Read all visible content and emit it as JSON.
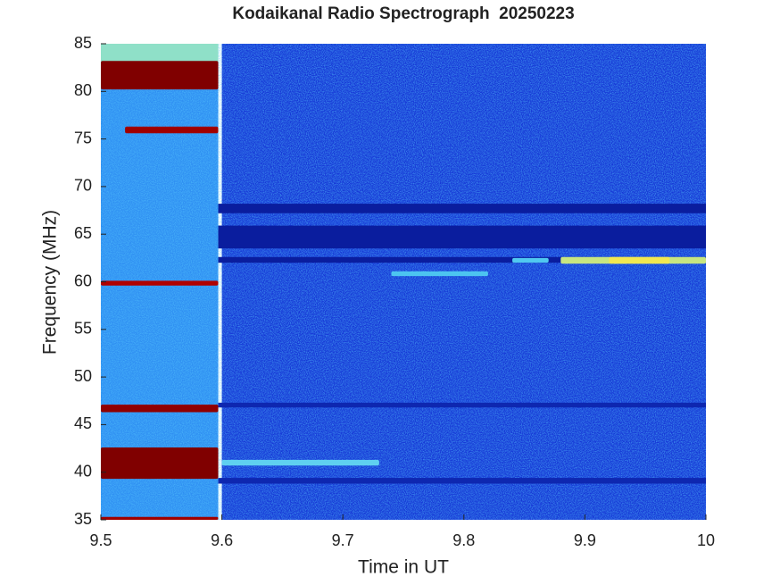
{
  "chart_data": {
    "type": "heatmap",
    "title": "Kodaikanal Radio Spectrograph  20250223",
    "xlabel": "Time in UT",
    "ylabel": "Frequency (MHz)",
    "xlim": [
      9.5,
      10
    ],
    "ylim": [
      35,
      85
    ],
    "xticks": [
      9.5,
      9.6,
      9.7,
      9.8,
      9.9,
      10
    ],
    "yticks": [
      35,
      40,
      45,
      50,
      55,
      60,
      65,
      70,
      75,
      80,
      85
    ],
    "regions": [
      {
        "x": [
          9.6,
          10
        ],
        "y": [
          35,
          85
        ],
        "color": "#1638d6"
      },
      {
        "x": [
          9.5,
          9.597
        ],
        "y": [
          35,
          85
        ],
        "color": "#2f8ff2"
      },
      {
        "x": [
          9.5,
          9.597
        ],
        "y": [
          83,
          85
        ],
        "color": "#8fe0c8"
      },
      {
        "x": [
          9.597,
          10
        ],
        "y": [
          67.2,
          68.2
        ],
        "color": "#0a1d9e"
      },
      {
        "x": [
          9.597,
          10
        ],
        "y": [
          63.5,
          65.9
        ],
        "color": "#0a1d9e"
      },
      {
        "x": [
          9.597,
          10
        ],
        "y": [
          62,
          62.6
        ],
        "color": "#0a1d9e"
      },
      {
        "x": [
          9.597,
          10
        ],
        "y": [
          46.8,
          47.3
        ],
        "color": "#0e27b0"
      },
      {
        "x": [
          9.597,
          10
        ],
        "y": [
          38.8,
          39.4
        ],
        "color": "#0e27b0"
      },
      {
        "x": [
          9.5,
          9.597
        ],
        "y": [
          80.2,
          83.2
        ],
        "color": "#800000"
      },
      {
        "x": [
          9.5,
          9.597
        ],
        "y": [
          39.3,
          42.6
        ],
        "color": "#800000"
      },
      {
        "x": [
          9.52,
          9.597
        ],
        "y": [
          75.6,
          76.3
        ],
        "color": "#a00000"
      },
      {
        "x": [
          9.5,
          9.597
        ],
        "y": [
          59.6,
          60.1
        ],
        "color": "#b00000"
      },
      {
        "x": [
          9.5,
          9.597
        ],
        "y": [
          46.3,
          47.1
        ],
        "color": "#900000"
      },
      {
        "x": [
          9.5,
          9.597
        ],
        "y": [
          35,
          35.3
        ],
        "color": "#a00000"
      },
      {
        "x": [
          9.6,
          9.73
        ],
        "y": [
          40.7,
          41.3
        ],
        "color": "#5fd0f0"
      },
      {
        "x": [
          9.74,
          9.82
        ],
        "y": [
          60.6,
          61.1
        ],
        "color": "#4cc4f0"
      },
      {
        "x": [
          9.84,
          9.87
        ],
        "y": [
          62,
          62.5
        ],
        "color": "#50c8f0"
      },
      {
        "x": [
          9.88,
          10
        ],
        "y": [
          61.9,
          62.6
        ],
        "color": "#c8e680"
      },
      {
        "x": [
          9.92,
          9.97
        ],
        "y": [
          61.9,
          62.6
        ],
        "color": "#f2e850"
      }
    ]
  }
}
